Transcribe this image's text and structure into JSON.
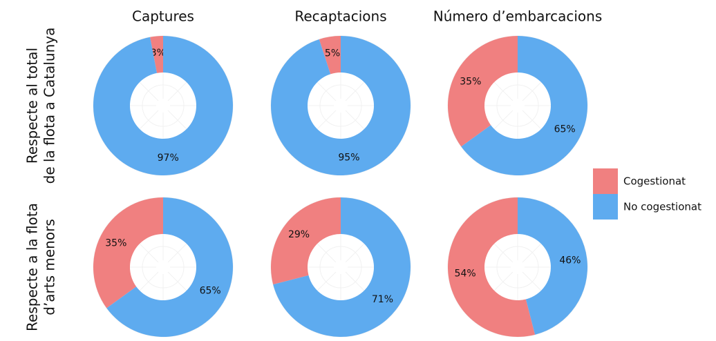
{
  "columns": [
    "Captures",
    "Recaptacions",
    "Número d’embarcacions"
  ],
  "rows": [
    [
      "Respecte al total",
      "de la flota a Catalunya"
    ],
    [
      "Respecte a la flota",
      "d’arts menors"
    ]
  ],
  "chart_data": [
    {
      "type": "pie",
      "donut": true,
      "categories": [
        "Cogestionat",
        "No cogestionat"
      ],
      "colors": [
        "#f08080",
        "#5eabef"
      ],
      "values": [
        3,
        97
      ],
      "value_labels": [
        "3%",
        "97%"
      ]
    },
    {
      "type": "pie",
      "donut": true,
      "categories": [
        "Cogestionat",
        "No cogestionat"
      ],
      "colors": [
        "#f08080",
        "#5eabef"
      ],
      "values": [
        5,
        95
      ],
      "value_labels": [
        "5%",
        "95%"
      ]
    },
    {
      "type": "pie",
      "donut": true,
      "categories": [
        "Cogestionat",
        "No cogestionat"
      ],
      "colors": [
        "#f08080",
        "#5eabef"
      ],
      "values": [
        35,
        65
      ],
      "value_labels": [
        "35%",
        "65%"
      ]
    },
    {
      "type": "pie",
      "donut": true,
      "categories": [
        "Cogestionat",
        "No cogestionat"
      ],
      "colors": [
        "#f08080",
        "#5eabef"
      ],
      "values": [
        35,
        65
      ],
      "value_labels": [
        "35%",
        "65%"
      ]
    },
    {
      "type": "pie",
      "donut": true,
      "categories": [
        "Cogestionat",
        "No cogestionat"
      ],
      "colors": [
        "#f08080",
        "#5eabef"
      ],
      "values": [
        29,
        71
      ],
      "value_labels": [
        "29%",
        "71%"
      ]
    },
    {
      "type": "pie",
      "donut": true,
      "categories": [
        "Cogestionat",
        "No cogestionat"
      ],
      "colors": [
        "#f08080",
        "#5eabef"
      ],
      "values": [
        54,
        46
      ],
      "value_labels": [
        "54%",
        "46%"
      ]
    }
  ]
}
